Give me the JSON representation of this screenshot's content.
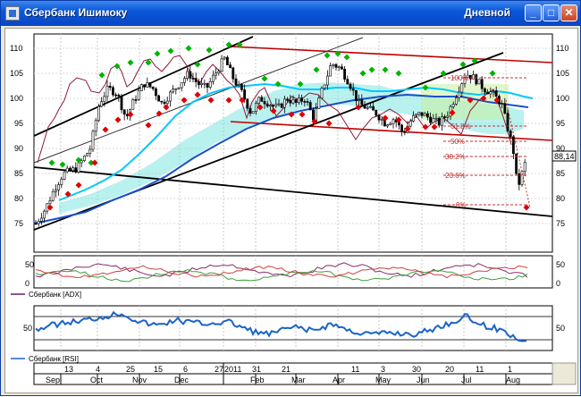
{
  "window": {
    "title": "Сбербанк Ишимоку",
    "timeframe_label": "Дневной",
    "min_icon": "minimize-icon",
    "max_icon": "maximize-icon",
    "close_icon": "close-icon"
  },
  "main_chart": {
    "y_ticks": [
      "110",
      "105",
      "100",
      "95",
      "90",
      "85",
      "80",
      "75"
    ],
    "last_price": "88,14",
    "fib_levels": [
      {
        "label": "100%"
      },
      {
        "label": "61.8%"
      },
      {
        "label": "50%"
      },
      {
        "label": "38.2%"
      },
      {
        "label": "23.6%"
      },
      {
        "label": "0%"
      }
    ]
  },
  "adx_panel": {
    "legend": "Сбербанк [ADX]",
    "y_ticks": [
      "50",
      "0"
    ]
  },
  "rsi_panel": {
    "legend": "Сбербанк [RSI]",
    "y_ticks": [
      "50"
    ]
  },
  "time_axis": {
    "days": [
      "13",
      "4",
      "25",
      "15",
      "6",
      "27",
      "2011",
      "31",
      "21",
      "11",
      "3",
      "30",
      "20",
      "11",
      "1"
    ],
    "months": [
      "Sep",
      "Oct",
      "Nov",
      "Dec",
      "Feb",
      "Mar",
      "Apr",
      "May",
      "Jun",
      "Jul",
      "Aug"
    ]
  },
  "colors": {
    "candle": "#000000",
    "resistance": "#c00000",
    "tenkan": "#00c8ff",
    "kijun": "#1a50c8",
    "cloud": "#7fe6e0",
    "chikou": "#8b1a3a",
    "fractal_up": "#00b400",
    "fractal_down": "#e00000",
    "rsi": "#1a64c8"
  }
}
